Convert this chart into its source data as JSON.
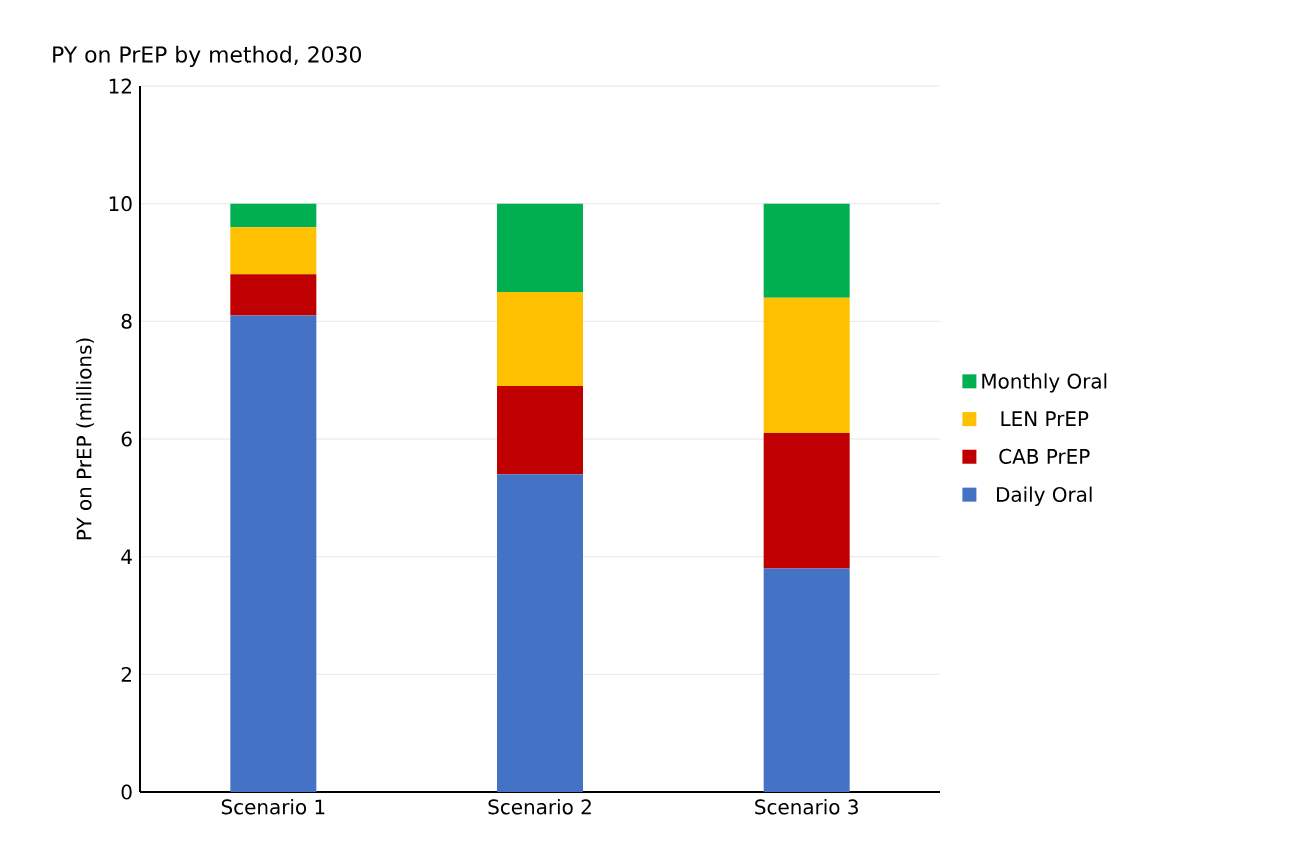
{
  "chart_data": {
    "type": "bar",
    "stacked": true,
    "title": "PY on PrEP by method, 2030",
    "ylabel": "PY on PrEP (millions)",
    "categories": [
      "Scenario 1",
      "Scenario 2",
      "Scenario 3"
    ],
    "series": [
      {
        "name": "Daily Oral",
        "color": "#4472c4",
        "values": [
          8.1,
          5.4,
          3.8
        ]
      },
      {
        "name": "CAB PrEP",
        "color": "#c00000",
        "values": [
          0.7,
          1.5,
          2.3
        ]
      },
      {
        "name": "LEN PrEP",
        "color": "#ffc000",
        "values": [
          0.8,
          1.6,
          2.3
        ]
      },
      {
        "name": "Monthly Oral",
        "color": "#00b050",
        "values": [
          0.4,
          1.5,
          1.6
        ]
      }
    ],
    "ylim": [
      0,
      12
    ],
    "yticks": [
      0,
      2,
      4,
      6,
      8,
      10,
      12
    ],
    "grid": "y",
    "legend": "right"
  }
}
